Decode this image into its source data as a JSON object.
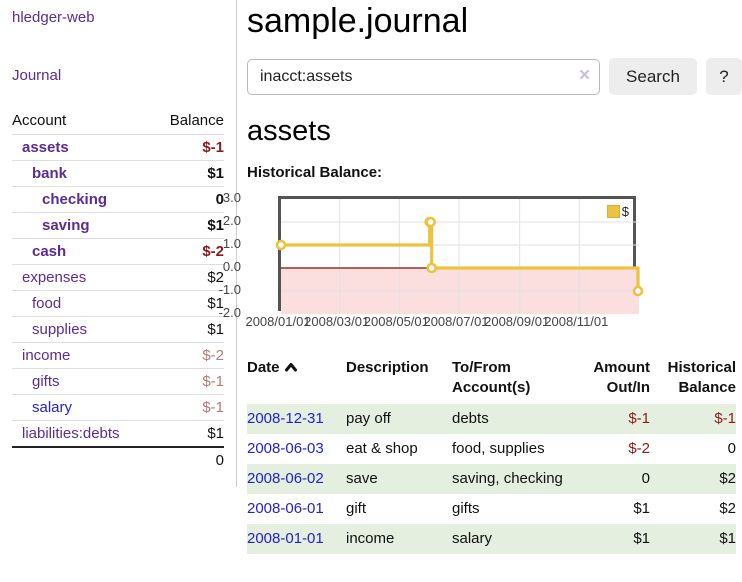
{
  "app": {
    "brand": "hledger-web"
  },
  "sidebar": {
    "nav": [
      {
        "label": "Journal"
      }
    ],
    "account_header": "Account",
    "balance_header": "Balance",
    "accounts": [
      {
        "name": "assets",
        "depth": 1,
        "bold": true,
        "balance": "$-1"
      },
      {
        "name": "bank",
        "depth": 2,
        "bold": true,
        "balance": "$1"
      },
      {
        "name": "checking",
        "depth": 3,
        "bold": true,
        "balance": "0"
      },
      {
        "name": "saving",
        "depth": 3,
        "bold": true,
        "balance": "$1"
      },
      {
        "name": "cash",
        "depth": 2,
        "bold": true,
        "balance": "$-2"
      },
      {
        "name": "expenses",
        "depth": 1,
        "bold": false,
        "balance": "$2"
      },
      {
        "name": "food",
        "depth": 2,
        "bold": false,
        "balance": "$1"
      },
      {
        "name": "supplies",
        "depth": 2,
        "bold": false,
        "balance": "$1"
      },
      {
        "name": "income",
        "depth": 1,
        "bold": false,
        "balance": "$-2"
      },
      {
        "name": "gifts",
        "depth": 2,
        "bold": false,
        "balance": "$-1"
      },
      {
        "name": "salary",
        "depth": 2,
        "bold": false,
        "balance": "$-1",
        "variant": "blue"
      },
      {
        "name": "liabilities:debts",
        "depth": 1,
        "bold": false,
        "balance": "$1"
      }
    ],
    "total": "0"
  },
  "main": {
    "title": "sample.journal",
    "search": {
      "value": "inacct:assets",
      "clear_icon": "×",
      "button_label": "Search",
      "help_label": "?"
    },
    "account_heading": "assets",
    "chart_label": "Historical Balance:"
  },
  "chart_data": {
    "type": "line",
    "step": true,
    "title": "Historical Balance:",
    "series": [
      {
        "name": "$",
        "color": "#edc240",
        "points": [
          {
            "date": "2008-01-01",
            "value": 1
          },
          {
            "date": "2008-06-01",
            "value": 2
          },
          {
            "date": "2008-06-02",
            "value": 2
          },
          {
            "date": "2008-06-03",
            "value": 0
          },
          {
            "date": "2008-12-31",
            "value": -1
          }
        ]
      }
    ],
    "x_range": [
      "2008-01-01",
      "2009-01-01"
    ],
    "x_ticks": [
      "2008/01/01",
      "2008/03/01",
      "2008/05/01",
      "2008/07/01",
      "2008/09/01",
      "2008/11/01"
    ],
    "y_ticks": [
      "3.0",
      "2.0",
      "1.0",
      "0.0",
      "-1.0",
      "-2.0"
    ],
    "ylim": [
      -2,
      3
    ],
    "grid": true,
    "negative_region_highlight": true,
    "legend_position": "top-right"
  },
  "register": {
    "headers": {
      "date": "Date",
      "description": "Description",
      "accounts": "To/From Account(s)",
      "amount": "Amount Out/In",
      "balance": "Historical Balance"
    },
    "rows": [
      {
        "date": "2008-12-31",
        "description": "pay off",
        "accounts": "debts",
        "amount": "$-1",
        "balance": "$-1"
      },
      {
        "date": "2008-06-03",
        "description": "eat & shop",
        "accounts": "food, supplies",
        "amount": "$-2",
        "balance": "0"
      },
      {
        "date": "2008-06-02",
        "description": "save",
        "accounts": "saving, checking",
        "amount": "0",
        "balance": "$2"
      },
      {
        "date": "2008-06-01",
        "description": "gift",
        "accounts": "gifts",
        "amount": "$1",
        "balance": "$2"
      },
      {
        "date": "2008-01-01",
        "description": "income",
        "accounts": "salary",
        "amount": "$1",
        "balance": "$1"
      }
    ]
  },
  "colors": {
    "link_purple": "#5a2d91",
    "link_blue": "#2222cc",
    "negative": "#8e1b1b",
    "negative_soft": "#b07c7c",
    "row_green": "#e4efdf",
    "chart_line": "#edc240",
    "chart_negative_fill": "#fbdede",
    "chart_zero_line": "#9e2b2b",
    "chart_border": "#545454"
  }
}
